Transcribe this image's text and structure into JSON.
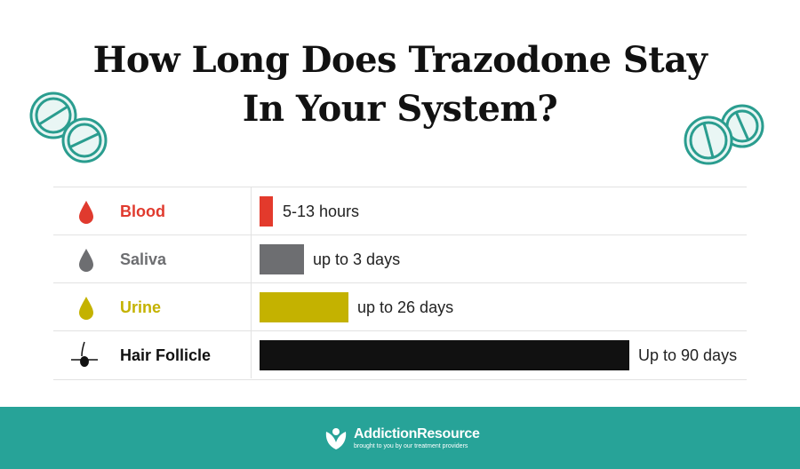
{
  "header": {
    "title_lines": [
      "How Long Does Trazodone Stay",
      "In Your System?"
    ]
  },
  "table": {
    "rows": [
      {
        "label": "Blood",
        "duration": "5-13 hours"
      },
      {
        "label": "Saliva",
        "duration": "up to 3 days"
      },
      {
        "label": "Urine",
        "duration": "up to 26 days"
      },
      {
        "label": "Hair Follicle",
        "duration": "Up to 90 days"
      }
    ]
  },
  "footer": {
    "brand": "AddictionResource",
    "tagline": "brought to you by our treatment providers"
  }
}
